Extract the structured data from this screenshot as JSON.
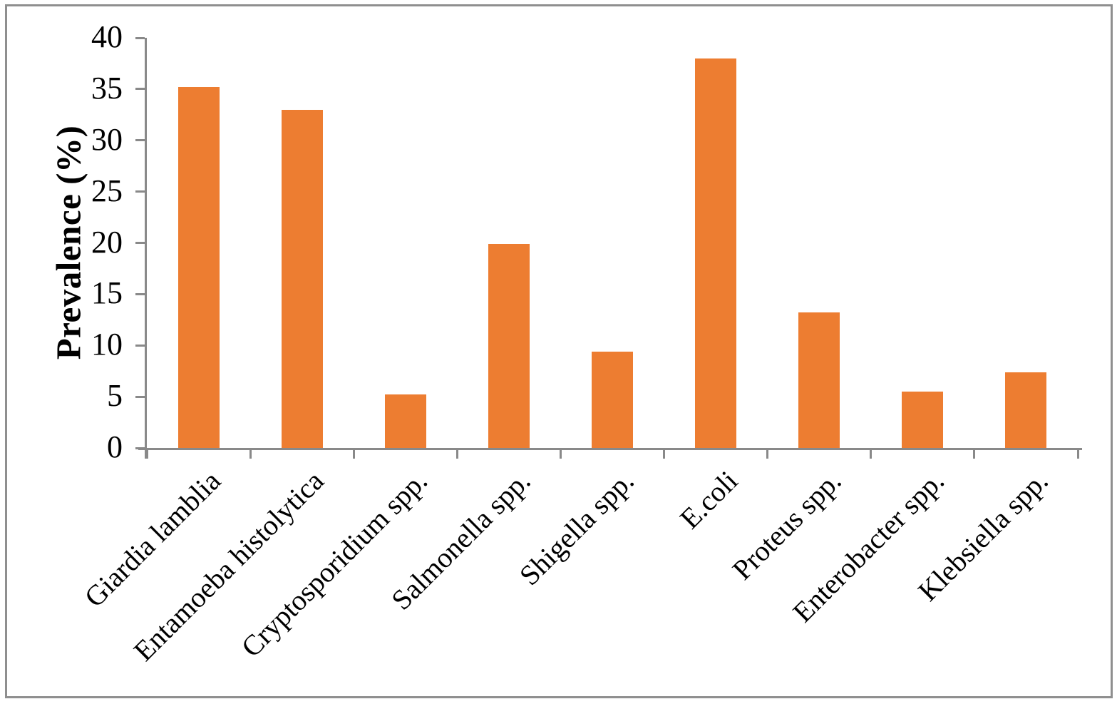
{
  "chart_data": {
    "type": "bar",
    "title": "",
    "xlabel": "",
    "ylabel": "Prevalence (%)",
    "categories": [
      "Giardia lamblia",
      "Entamoeba histolytica",
      "Cryptosporidium spp.",
      "Salmonella spp.",
      "Shigella spp.",
      "E.coli",
      "Proteus spp.",
      "Enterobacter spp.",
      "Klebsiella spp."
    ],
    "values": [
      35.2,
      33,
      5.2,
      19.9,
      9.4,
      38,
      13.2,
      5.5,
      7.4
    ],
    "ylim": [
      0,
      40
    ],
    "yticks": [
      0,
      5,
      10,
      15,
      20,
      25,
      30,
      35,
      40
    ],
    "x_label_rotation_deg": 45,
    "grid": false,
    "legend": false,
    "colors": {
      "bar": "#ED7D31",
      "axis": "#898989",
      "text": "#000000",
      "frame_border": "#8F8F8F",
      "background": "#FFFFFF"
    }
  }
}
